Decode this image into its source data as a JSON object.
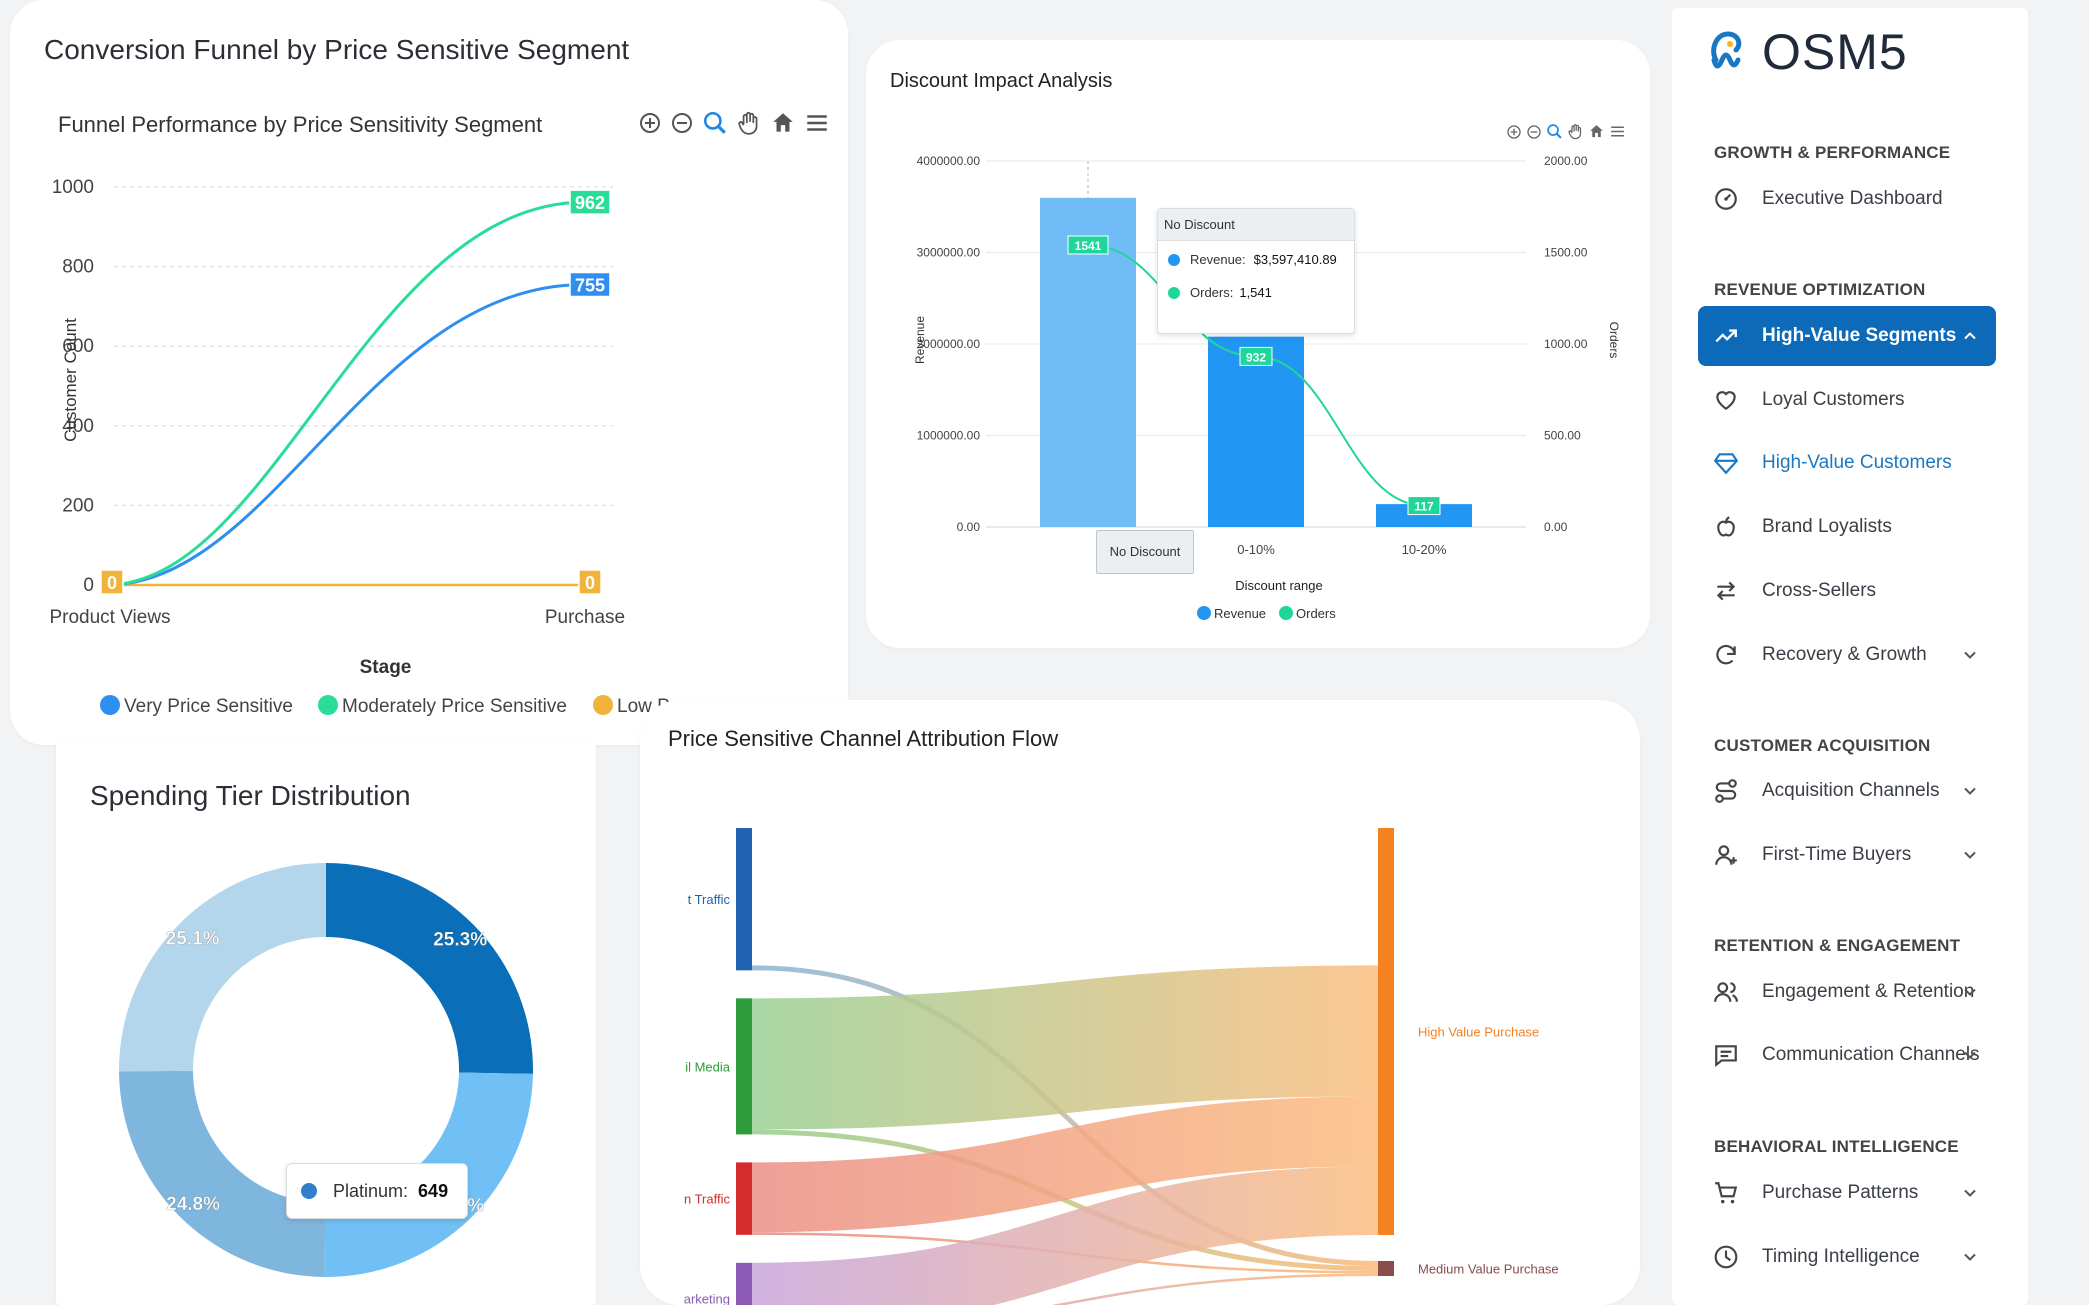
{
  "funnel_card": {
    "title": "Conversion Funnel by Price Sensitive Segment",
    "chart_title": "Funnel Performance by Price Sensitivity Segment"
  },
  "discount_card": {
    "title": "Discount Impact Analysis"
  },
  "tooltip_discount": {
    "header": "No Discount",
    "revenue_label": "Revenue:",
    "revenue_value": "$3,597,410.89",
    "orders_label": "Orders:",
    "orders_value": "1,541",
    "x_hover_label": "No Discount"
  },
  "spending_card": {
    "title": "Spending Tier Distribution"
  },
  "tooltip_spending": {
    "label": "Platinum:",
    "value": "649"
  },
  "sankey_card": {
    "title": "Price Sensitive Channel Attribution Flow"
  },
  "sidebar": {
    "brand": "OSM5",
    "sections": [
      {
        "title": "GROWTH & PERFORMANCE",
        "items": [
          {
            "label": "Executive Dashboard",
            "icon": "gauge-icon",
            "chevron": false
          }
        ]
      },
      {
        "title": "REVENUE OPTIMIZATION",
        "items": [
          {
            "label": "High-Value Segments",
            "icon": "trending-up-icon",
            "chevron": true,
            "state": "active"
          },
          {
            "label": "Loyal Customers",
            "icon": "heart-icon",
            "chevron": false
          },
          {
            "label": "High-Value Customers",
            "icon": "diamond-icon",
            "chevron": false,
            "state": "selected"
          },
          {
            "label": "Brand Loyalists",
            "icon": "apple-icon",
            "chevron": false
          },
          {
            "label": "Cross-Sellers",
            "icon": "swap-arrows-icon",
            "chevron": false
          },
          {
            "label": "Recovery & Growth",
            "icon": "refresh-icon",
            "chevron": true
          }
        ]
      },
      {
        "title": "CUSTOMER ACQUISITION",
        "items": [
          {
            "label": "Acquisition Channels",
            "icon": "route-icon",
            "chevron": true
          },
          {
            "label": "First-Time Buyers",
            "icon": "user-plus-icon",
            "chevron": true
          }
        ]
      },
      {
        "title": "RETENTION & ENGAGEMENT",
        "items": [
          {
            "label": "Engagement & Retention",
            "icon": "users-icon",
            "chevron": true
          },
          {
            "label": "Communication Channels",
            "icon": "message-icon",
            "chevron": true
          }
        ]
      },
      {
        "title": "BEHAVIORAL INTELLIGENCE",
        "items": [
          {
            "label": "Purchase Patterns",
            "icon": "cart-icon",
            "chevron": true
          },
          {
            "label": "Timing Intelligence",
            "icon": "clock-icon",
            "chevron": true
          }
        ]
      }
    ]
  },
  "colors": {
    "very": "#2e8ff0",
    "moderate": "#29dd99",
    "low": "#f2b33a",
    "revenue": "#2196f3",
    "revenue_hover": "#6fbcf7",
    "orders": "#1fd69a",
    "active_nav": "#0d6ab8"
  },
  "chart_data": [
    {
      "type": "line",
      "title": "Funnel Performance by Price Sensitivity Segment",
      "categories": [
        "Product Views",
        "Purchase"
      ],
      "xlabel": "Stage",
      "ylabel": "Customer Count",
      "ylim": [
        0,
        1000
      ],
      "yticks": [
        "0",
        "200",
        "400",
        "600",
        "800",
        "1000"
      ],
      "grid": true,
      "legend": "bottom",
      "series": [
        {
          "name": "Very Price Sensitive",
          "values": [
            0,
            755
          ],
          "end_label": "755"
        },
        {
          "name": "Moderately Price Sensitive",
          "values": [
            0,
            962
          ],
          "end_label": "962"
        },
        {
          "name": "Low P",
          "values": [
            0,
            0
          ],
          "start_label": "0",
          "end_label": "0"
        }
      ]
    },
    {
      "type": "bar",
      "title": "",
      "categories": [
        "No Discount",
        "0-10%",
        "10-20%"
      ],
      "xlabel": "Discount range",
      "ylabel": "Revenue",
      "y2label": "Orders",
      "ylim": [
        0,
        4000000
      ],
      "y2lim": [
        0,
        2000
      ],
      "yticks": [
        "0.00",
        "1000000.00",
        "2000000.00",
        "3000000.00",
        "4000000.00"
      ],
      "y2ticks": [
        "0.00",
        "500.00",
        "1000.00",
        "1500.00",
        "2000.00"
      ],
      "legend": "bottom",
      "series": [
        {
          "name": "Revenue",
          "axis": "left",
          "values": [
            3597410.89,
            2080000,
            250000
          ]
        },
        {
          "name": "Orders",
          "axis": "right",
          "values": [
            1541,
            932,
            117
          ],
          "labels": [
            "1541",
            "932",
            "117"
          ]
        }
      ]
    },
    {
      "type": "pie",
      "title": "Spending Tier Distribution",
      "donut": true,
      "slices": [
        {
          "label": "25.3%",
          "value": 25.3,
          "color": "#0a6fb8"
        },
        {
          "label": "24.8%",
          "value": 24.8,
          "color": "#70c0f5"
        },
        {
          "label": "24.8%",
          "value": 24.8,
          "color": "#7fb6de"
        },
        {
          "label": "25.1%",
          "value": 25.1,
          "color": "#b4d6ec"
        }
      ]
    },
    {
      "type": "sankey",
      "title": "Price Sensitive Channel Attribution Flow",
      "sources": [
        {
          "label": "t Traffic",
          "color": "#1f63b0",
          "fill": "#8fb8d8"
        },
        {
          "label": "il Media",
          "color": "#2e9c3a",
          "fill": "#9ad095"
        },
        {
          "label": "n Traffic",
          "color": "#d52b2b",
          "fill": "#eb8f86"
        },
        {
          "label": "arketing",
          "color": "#8a5ab5",
          "fill": "#c9a5dc"
        }
      ],
      "targets": [
        {
          "label": "High Value Purchase",
          "color": "#f58220"
        },
        {
          "label": "Medium Value Purchase",
          "color": "#8a4b4b"
        }
      ],
      "links": [
        {
          "source": 0,
          "target": 0,
          "value": 110
        },
        {
          "source": 0,
          "target": 1,
          "value": 4
        },
        {
          "source": 1,
          "target": 0,
          "value": 105
        },
        {
          "source": 1,
          "target": 1,
          "value": 4
        },
        {
          "source": 2,
          "target": 0,
          "value": 56
        },
        {
          "source": 2,
          "target": 1,
          "value": 2
        },
        {
          "source": 3,
          "target": 0,
          "value": 55
        },
        {
          "source": 3,
          "target": 1,
          "value": 2
        }
      ]
    }
  ]
}
